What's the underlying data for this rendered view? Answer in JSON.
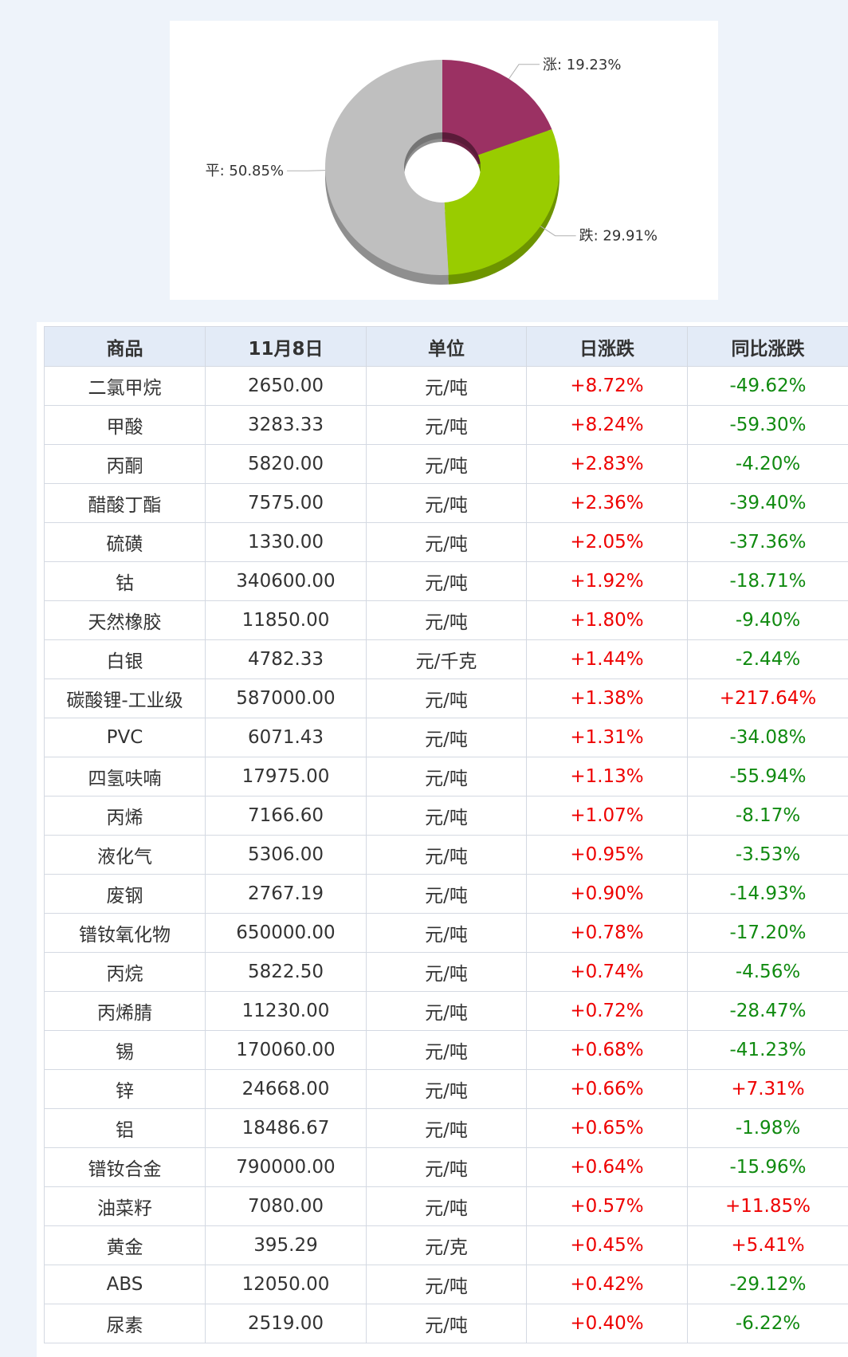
{
  "chart_data": {
    "type": "pie",
    "variant": "3d-donut",
    "slices": [
      {
        "label": "涨",
        "value": 19.23,
        "text": "涨: 19.23%",
        "color": "#9b3163",
        "shade": "#6e2246"
      },
      {
        "label": "跌",
        "value": 29.91,
        "text": "跌: 29.91%",
        "color": "#99cc00",
        "shade": "#6d9400"
      },
      {
        "label": "平",
        "value": 50.85,
        "text": "平: 50.85%",
        "color": "#bfbfbf",
        "shade": "#8f8f8f"
      }
    ]
  },
  "table": {
    "headers": [
      "商品",
      "11月8日",
      "单位",
      "日涨跌",
      "同比涨跌"
    ],
    "rows": [
      [
        "二氯甲烷",
        "2650.00",
        "元/吨",
        "+8.72%",
        "-49.62%"
      ],
      [
        "甲酸",
        "3283.33",
        "元/吨",
        "+8.24%",
        "-59.30%"
      ],
      [
        "丙酮",
        "5820.00",
        "元/吨",
        "+2.83%",
        "-4.20%"
      ],
      [
        "醋酸丁酯",
        "7575.00",
        "元/吨",
        "+2.36%",
        "-39.40%"
      ],
      [
        "硫磺",
        "1330.00",
        "元/吨",
        "+2.05%",
        "-37.36%"
      ],
      [
        "钴",
        "340600.00",
        "元/吨",
        "+1.92%",
        "-18.71%"
      ],
      [
        "天然橡胶",
        "11850.00",
        "元/吨",
        "+1.80%",
        "-9.40%"
      ],
      [
        "白银",
        "4782.33",
        "元/千克",
        "+1.44%",
        "-2.44%"
      ],
      [
        "碳酸锂-工业级",
        "587000.00",
        "元/吨",
        "+1.38%",
        "+217.64%"
      ],
      [
        "PVC",
        "6071.43",
        "元/吨",
        "+1.31%",
        "-34.08%"
      ],
      [
        "四氢呋喃",
        "17975.00",
        "元/吨",
        "+1.13%",
        "-55.94%"
      ],
      [
        "丙烯",
        "7166.60",
        "元/吨",
        "+1.07%",
        "-8.17%"
      ],
      [
        "液化气",
        "5306.00",
        "元/吨",
        "+0.95%",
        "-3.53%"
      ],
      [
        "废钢",
        "2767.19",
        "元/吨",
        "+0.90%",
        "-14.93%"
      ],
      [
        "镨钕氧化物",
        "650000.00",
        "元/吨",
        "+0.78%",
        "-17.20%"
      ],
      [
        "丙烷",
        "5822.50",
        "元/吨",
        "+0.74%",
        "-4.56%"
      ],
      [
        "丙烯腈",
        "11230.00",
        "元/吨",
        "+0.72%",
        "-28.47%"
      ],
      [
        "锡",
        "170060.00",
        "元/吨",
        "+0.68%",
        "-41.23%"
      ],
      [
        "锌",
        "24668.00",
        "元/吨",
        "+0.66%",
        "+7.31%"
      ],
      [
        "铝",
        "18486.67",
        "元/吨",
        "+0.65%",
        "-1.98%"
      ],
      [
        "镨钕合金",
        "790000.00",
        "元/吨",
        "+0.64%",
        "-15.96%"
      ],
      [
        "油菜籽",
        "7080.00",
        "元/吨",
        "+0.57%",
        "+11.85%"
      ],
      [
        "黄金",
        "395.29",
        "元/克",
        "+0.45%",
        "+5.41%"
      ],
      [
        "ABS",
        "12050.00",
        "元/吨",
        "+0.42%",
        "-29.12%"
      ],
      [
        "尿素",
        "2519.00",
        "元/吨",
        "+0.40%",
        "-6.22%"
      ]
    ]
  }
}
